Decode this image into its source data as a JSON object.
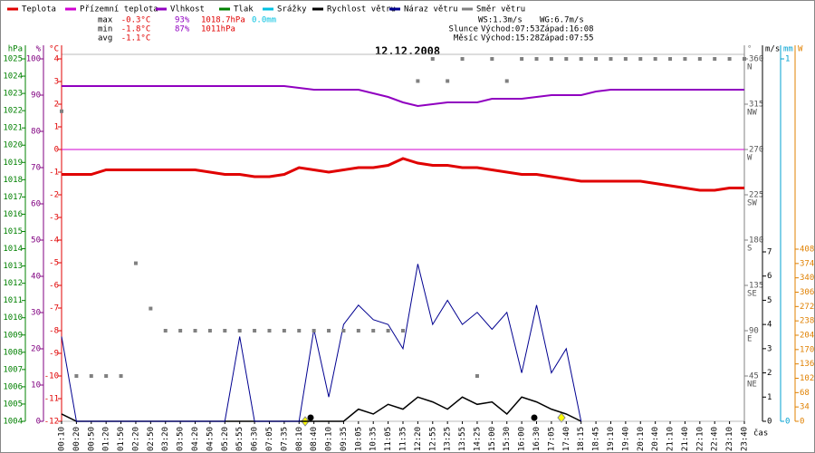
{
  "chart_data": {
    "type": "line",
    "title": "12.12.2008",
    "x_label": "čas",
    "categories": [
      "00:10",
      "00:20",
      "00:50",
      "01:20",
      "01:50",
      "02:20",
      "02:50",
      "03:20",
      "03:50",
      "04:20",
      "04:50",
      "05:20",
      "05:55",
      "06:30",
      "07:05",
      "07:35",
      "08:10",
      "08:40",
      "09:10",
      "09:35",
      "10:05",
      "10:35",
      "11:05",
      "11:35",
      "12:20",
      "12:55",
      "13:25",
      "13:55",
      "14:25",
      "15:00",
      "15:30",
      "16:00",
      "16:30",
      "17:05",
      "17:40",
      "18:15",
      "18:45",
      "19:10",
      "19:40",
      "20:10",
      "20:40",
      "21:10",
      "21:40",
      "22:10",
      "22:40",
      "23:10",
      "23:40"
    ],
    "axes": {
      "press": {
        "unit": "hPa",
        "color": "#008000",
        "lim": [
          1004,
          1025
        ],
        "ticks": [
          1004,
          1005,
          1006,
          1007,
          1008,
          1009,
          1010,
          1011,
          1012,
          1013,
          1014,
          1015,
          1016,
          1017,
          1018,
          1019,
          1020,
          1021,
          1022,
          1023,
          1024,
          1025
        ]
      },
      "hum": {
        "unit": "%",
        "color": "#800080",
        "lim": [
          0,
          100
        ],
        "ticks": [
          0,
          10,
          20,
          30,
          40,
          50,
          60,
          70,
          80,
          90,
          100
        ]
      },
      "temp": {
        "unit": "°C",
        "color": "#e00000",
        "lim": [
          -12,
          4
        ],
        "ticks": [
          -12,
          -11,
          -10,
          -9,
          -8,
          -7,
          -6,
          -5,
          -4,
          -3,
          -2,
          -1,
          0,
          1,
          2,
          3,
          4
        ]
      },
      "dir": {
        "unit": "°",
        "color": "#808080",
        "lim": [
          0,
          360
        ],
        "ticks": [
          45,
          90,
          135,
          180,
          225,
          270,
          315,
          360
        ],
        "compass": [
          "NE",
          "E",
          "SE",
          "S",
          "SW",
          "W",
          "NW",
          "N"
        ]
      },
      "speed": {
        "unit": "m/s",
        "color": "#000000",
        "lim": [
          0,
          7
        ],
        "ticks": [
          0,
          1,
          2,
          3,
          4,
          5,
          6,
          7
        ]
      },
      "rain": {
        "unit": "mm",
        "color": "#00a0d0",
        "lim": [
          0,
          1
        ],
        "ticks": [
          0,
          1
        ]
      },
      "sun": {
        "unit": "W",
        "color": "#e08000",
        "lim": [
          0,
          408
        ],
        "ticks": [
          0,
          34,
          68,
          102,
          136,
          170,
          204,
          238,
          272,
          306,
          340,
          374,
          408
        ]
      }
    },
    "series": [
      {
        "name": "Teplota",
        "color": "#e00000",
        "axis": "temp",
        "width": 3,
        "values": [
          -1.1,
          -1.1,
          -1.1,
          -0.9,
          -0.9,
          -0.9,
          -0.9,
          -0.9,
          -0.9,
          -0.9,
          -1.0,
          -1.1,
          -1.1,
          -1.2,
          -1.2,
          -1.1,
          -0.8,
          -0.9,
          -1.0,
          -0.9,
          -0.8,
          -0.8,
          -0.7,
          -0.4,
          -0.6,
          -0.7,
          -0.7,
          -0.8,
          -0.8,
          -0.9,
          -1.0,
          -1.1,
          -1.1,
          -1.2,
          -1.3,
          -1.4,
          -1.4,
          -1.4,
          -1.4,
          -1.4,
          -1.5,
          -1.6,
          -1.7,
          -1.8,
          -1.8,
          -1.7,
          -1.7
        ]
      },
      {
        "name": "Přízemní teplota",
        "color": "#d000d0",
        "axis": "temp",
        "width": 1,
        "values": [
          0,
          0,
          0,
          0,
          0,
          0,
          0,
          0,
          0,
          0,
          0,
          0,
          0,
          0,
          0,
          0,
          0,
          0,
          0,
          0,
          0,
          0,
          0,
          0,
          0,
          0,
          0,
          0,
          0,
          0,
          0,
          0,
          0,
          0,
          0,
          0,
          0,
          0,
          0,
          0,
          0,
          0,
          0,
          0,
          0,
          0,
          0
        ]
      },
      {
        "name": "Vlhkost",
        "color": "#9000c0",
        "axis": "hum",
        "width": 2,
        "values": [
          92.5,
          92.5,
          92.5,
          92.5,
          92.5,
          92.5,
          92.5,
          92.5,
          92.5,
          92.5,
          92.5,
          92.5,
          92.5,
          92.5,
          92.5,
          92.5,
          92,
          91.5,
          91.5,
          91.5,
          91.5,
          90.5,
          89.5,
          88,
          87,
          87.5,
          88,
          88,
          88,
          89,
          89,
          89,
          89.5,
          90,
          90,
          90,
          91,
          91.5,
          91.5,
          91.5,
          91.5,
          91.5,
          91.5,
          91.5,
          91.5,
          91.5,
          91.5
        ]
      },
      {
        "name": "Tlak",
        "color": "#008000",
        "axis": "press",
        "width": 1,
        "values": [
          null,
          null,
          null,
          null,
          null,
          null,
          null,
          null,
          null,
          null,
          null,
          null,
          null,
          null,
          null,
          null,
          null,
          null,
          null,
          null,
          null,
          null,
          null,
          null,
          null,
          null,
          null,
          null,
          null,
          null,
          null,
          null,
          null,
          null,
          null,
          null,
          null,
          null,
          null,
          null,
          null,
          null,
          null,
          null,
          null,
          null,
          null
        ]
      },
      {
        "name": "Srážky",
        "color": "#00c0e0",
        "axis": "rain",
        "width": 1,
        "values": [
          null,
          null,
          null,
          null,
          null,
          null,
          null,
          null,
          null,
          null,
          null,
          null,
          null,
          null,
          null,
          null,
          null,
          null,
          null,
          null,
          null,
          null,
          null,
          null,
          null,
          null,
          null,
          null,
          null,
          null,
          null,
          null,
          null,
          null,
          null,
          null,
          null,
          null,
          null,
          null,
          null,
          null,
          null,
          null,
          null,
          null,
          null
        ]
      },
      {
        "name": "Rychlost větru",
        "color": "#000000",
        "axis": "speed",
        "width": 1.5,
        "values": [
          0.3,
          0,
          0,
          0,
          0,
          0,
          0,
          0,
          0,
          0,
          0,
          0,
          0,
          0,
          0,
          0,
          0,
          0,
          0,
          0,
          0.5,
          0.3,
          0.7,
          0.5,
          1,
          0.8,
          0.5,
          1,
          0.7,
          0.8,
          0.3,
          1,
          0.8,
          0.5,
          0.3,
          0,
          null,
          null,
          null,
          null,
          null,
          null,
          null,
          null,
          null,
          null,
          null
        ]
      },
      {
        "name": "Náraz větru",
        "color": "#000090",
        "axis": "speed",
        "width": 1,
        "values": [
          3.5,
          0,
          0,
          0,
          0,
          0,
          0,
          0,
          0,
          0,
          0,
          0,
          3.5,
          0,
          0,
          0,
          0,
          3.8,
          1,
          4,
          4.8,
          4.2,
          4,
          3,
          6.5,
          4,
          5,
          4,
          4.5,
          3.8,
          4.5,
          2,
          4.8,
          2,
          3,
          0,
          null,
          null,
          null,
          null,
          null,
          null,
          null,
          null,
          null,
          null,
          null
        ]
      },
      {
        "name": "Směr větru",
        "color": "#808080",
        "axis": "dir",
        "marker": "square",
        "values": [
          308,
          45,
          45,
          45,
          45,
          157,
          112,
          90,
          90,
          90,
          90,
          90,
          90,
          90,
          90,
          90,
          90,
          90,
          90,
          90,
          90,
          90,
          90,
          90,
          338,
          360,
          338,
          360,
          45,
          360,
          338,
          360,
          360,
          360,
          360,
          360,
          360,
          360,
          360,
          360,
          360,
          360,
          360,
          360,
          360,
          360,
          360
        ]
      }
    ],
    "stats": [
      {
        "label": "max",
        "values": [
          "-0.3°C",
          "93%",
          "1018.7hPa",
          "0.0mm"
        ]
      },
      {
        "label": "min",
        "values": [
          "-1.8°C",
          "87%",
          "1011hPa"
        ]
      },
      {
        "label": "avg",
        "values": [
          "-1.1°C"
        ]
      }
    ],
    "wind": [
      "WS:1.3m/s",
      "WG:6.7m/s"
    ],
    "sun": {
      "label": "Slunce",
      "rise": "Východ:07:53",
      "set": "Západ:16:08"
    },
    "moon": {
      "label": "Měsíc",
      "rise": "Východ:15:28",
      "set": "Západ:07:55"
    }
  }
}
